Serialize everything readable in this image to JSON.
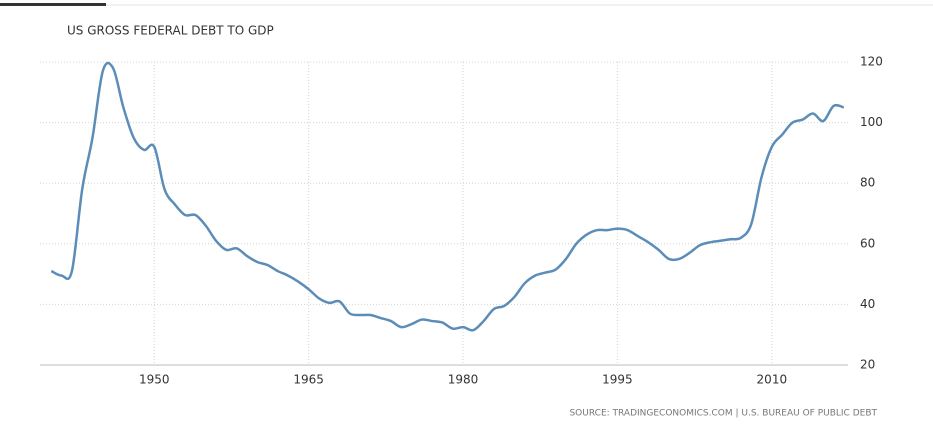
{
  "chart_data": {
    "type": "line",
    "title": "US GROSS FEDERAL DEBT TO GDP",
    "source": "SOURCE: TRADINGECONOMICS.COM | U.S. BUREAU OF PUBLIC DEBT",
    "x": [
      1940,
      1941,
      1942,
      1943,
      1944,
      1945,
      1946,
      1947,
      1948,
      1949,
      1950,
      1951,
      1952,
      1953,
      1954,
      1955,
      1956,
      1957,
      1958,
      1959,
      1960,
      1961,
      1962,
      1963,
      1964,
      1965,
      1966,
      1967,
      1968,
      1969,
      1970,
      1971,
      1972,
      1973,
      1974,
      1975,
      1976,
      1977,
      1978,
      1979,
      1980,
      1981,
      1982,
      1983,
      1984,
      1985,
      1986,
      1987,
      1988,
      1989,
      1990,
      1991,
      1992,
      1993,
      1994,
      1995,
      1996,
      1997,
      1998,
      1999,
      2000,
      2001,
      2002,
      2003,
      2004,
      2005,
      2006,
      2007,
      2008,
      2009,
      2010,
      2011,
      2012,
      2013,
      2014,
      2015,
      2016,
      2017
    ],
    "series": [
      {
        "name": "US Gross Federal Debt to GDP",
        "color": "#5b8db8",
        "values": [
          51,
          49.5,
          51,
          78,
          95,
          117,
          118,
          105,
          95,
          91,
          92,
          78,
          73,
          69.5,
          69.5,
          66,
          61,
          58,
          58.5,
          56,
          54,
          53,
          51,
          49.5,
          47.5,
          45,
          42,
          40.5,
          41,
          37,
          36.5,
          36.5,
          35.5,
          34.5,
          32.5,
          33.5,
          35,
          34.5,
          34,
          32,
          32.5,
          31.5,
          34.5,
          38.5,
          39.5,
          42.5,
          47,
          49.5,
          50.5,
          51.5,
          55,
          60,
          63,
          64.5,
          64.5,
          65,
          64.5,
          62.5,
          60.5,
          58,
          55,
          55,
          57,
          59.5,
          60.5,
          61,
          61.5,
          62,
          66.5,
          82,
          92,
          96,
          100,
          101,
          103,
          100.5,
          105.5,
          105
        ]
      }
    ],
    "xlim": [
      1938.9,
      2017.4
    ],
    "xticks": [
      1950,
      1965,
      1980,
      1995,
      2010
    ],
    "ylim": [
      20,
      120
    ],
    "yticks": [
      20,
      40,
      60,
      80,
      100,
      120
    ],
    "grid": true
  }
}
